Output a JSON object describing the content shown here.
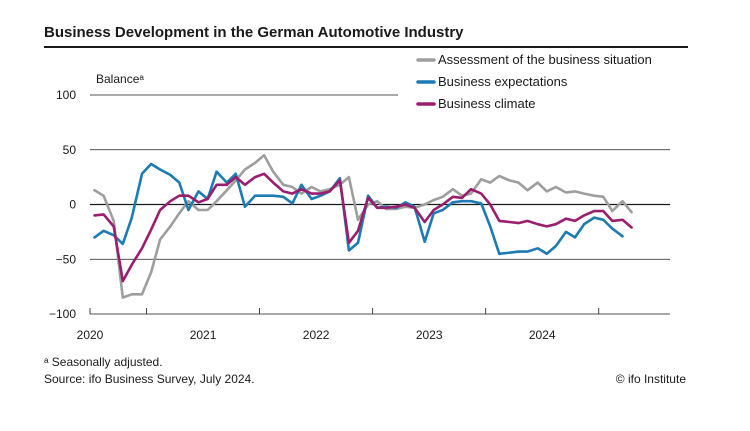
{
  "title": "Business Development in the German Automotive Industry",
  "footnote": "ᵃ Seasonally adjusted.",
  "source": "Source: ifo Business Survey, July 2024.",
  "credit": "© ifo Institute",
  "colors": {
    "situation": "#9e9e9e",
    "expectations": "#1c7bb3",
    "climate": "#9a1e6e",
    "grid": "#1a1a1a"
  },
  "chart_data": {
    "type": "line",
    "ylabel": "Balanceᵃ",
    "ylim": [
      -100,
      100
    ],
    "yticks": [
      100,
      50,
      0,
      -50,
      -100
    ],
    "ytick_labels": [
      "100",
      "50",
      "0",
      "−50",
      "−100"
    ],
    "xlim": [
      2019.5,
      2024.63
    ],
    "year_labels": [
      "2020",
      "2021",
      "2022",
      "2023",
      "2024"
    ],
    "legend_position": "top-right",
    "series": [
      {
        "name": "Assessment of the business situation",
        "color": "#9e9e9e",
        "x": [
          2019.54,
          2019.62,
          2019.71,
          2019.79,
          2019.87,
          2019.96,
          2020.04,
          2020.12,
          2020.21,
          2020.29,
          2020.37,
          2020.46,
          2020.54,
          2020.62,
          2020.71,
          2020.79,
          2020.87,
          2020.96,
          2021.04,
          2021.12,
          2021.21,
          2021.29,
          2021.37,
          2021.46,
          2021.54,
          2021.62,
          2021.71,
          2021.79,
          2021.87,
          2021.96,
          2022.04,
          2022.12,
          2022.21,
          2022.29,
          2022.37,
          2022.46,
          2022.54,
          2022.62,
          2022.71,
          2022.79,
          2022.87,
          2022.96,
          2023.04,
          2023.12,
          2023.21,
          2023.29,
          2023.37,
          2023.46,
          2023.54,
          2023.62,
          2023.71,
          2023.79,
          2023.87,
          2023.96,
          2024.04,
          2024.12,
          2024.21,
          2024.29,
          2024.37,
          2024.46,
          2024.54
        ],
        "y": [
          13,
          8,
          -15,
          -85,
          -82,
          -82,
          -62,
          -32,
          -20,
          -8,
          3,
          -5,
          -5,
          3,
          13,
          22,
          32,
          38,
          45,
          30,
          18,
          16,
          10,
          16,
          12,
          14,
          18,
          25,
          -14,
          0,
          3,
          -4,
          -4,
          -2,
          -3,
          0,
          4,
          7,
          14,
          8,
          10,
          23,
          20,
          26,
          22,
          20,
          13,
          20,
          12,
          16,
          11,
          12,
          10,
          8,
          7,
          -6,
          3,
          -7,
          null,
          null,
          null
        ]
      },
      {
        "name": "Business expectations",
        "color": "#1c7bb3",
        "x": [
          2019.54,
          2019.62,
          2019.71,
          2019.79,
          2019.87,
          2019.96,
          2020.04,
          2020.12,
          2020.21,
          2020.29,
          2020.37,
          2020.46,
          2020.54,
          2020.62,
          2020.71,
          2020.79,
          2020.87,
          2020.96,
          2021.04,
          2021.12,
          2021.21,
          2021.29,
          2021.37,
          2021.46,
          2021.54,
          2021.62,
          2021.71,
          2021.79,
          2021.87,
          2021.96,
          2022.04,
          2022.12,
          2022.21,
          2022.29,
          2022.37,
          2022.46,
          2022.54,
          2022.62,
          2022.71,
          2022.79,
          2022.87,
          2022.96,
          2023.04,
          2023.12,
          2023.21,
          2023.29,
          2023.37,
          2023.46,
          2023.54,
          2023.62,
          2023.71,
          2023.79,
          2023.87,
          2023.96,
          2024.04,
          2024.12,
          2024.21,
          2024.29,
          2024.37,
          2024.46,
          2024.54
        ],
        "y": [
          -30,
          -24,
          -28,
          -36,
          -12,
          28,
          37,
          32,
          27,
          20,
          -5,
          12,
          5,
          30,
          20,
          28,
          -2,
          8,
          8,
          8,
          7,
          1,
          18,
          5,
          8,
          12,
          24,
          -42,
          -35,
          8,
          -3,
          -2,
          -3,
          2,
          -2,
          -34,
          -8,
          -5,
          2,
          3,
          3,
          1,
          -20,
          -45,
          -44,
          -43,
          -43,
          -40,
          -45,
          -38,
          -25,
          -30,
          -18,
          -12,
          -14,
          -22,
          -29,
          null,
          null,
          null,
          null
        ]
      },
      {
        "name": "Business climate",
        "color": "#9a1e6e",
        "x": [
          2019.54,
          2019.62,
          2019.71,
          2019.79,
          2019.87,
          2019.96,
          2020.04,
          2020.12,
          2020.21,
          2020.29,
          2020.37,
          2020.46,
          2020.54,
          2020.62,
          2020.71,
          2020.79,
          2020.87,
          2020.96,
          2021.04,
          2021.12,
          2021.21,
          2021.29,
          2021.37,
          2021.46,
          2021.54,
          2021.62,
          2021.71,
          2021.79,
          2021.87,
          2021.96,
          2022.04,
          2022.12,
          2022.21,
          2022.29,
          2022.37,
          2022.46,
          2022.54,
          2022.62,
          2022.71,
          2022.79,
          2022.87,
          2022.96,
          2023.04,
          2023.12,
          2023.21,
          2023.29,
          2023.37,
          2023.46,
          2023.54,
          2023.62,
          2023.71,
          2023.79,
          2023.87,
          2023.96,
          2024.04,
          2024.12,
          2024.21,
          2024.29,
          2024.37,
          2024.46,
          2024.54
        ],
        "y": [
          -10,
          -9,
          -20,
          -70,
          -55,
          -40,
          -23,
          -5,
          3,
          8,
          8,
          2,
          5,
          18,
          18,
          25,
          18,
          25,
          28,
          20,
          12,
          10,
          14,
          10,
          10,
          12,
          22,
          -35,
          -24,
          6,
          -3,
          -3,
          -2,
          0,
          -3,
          -16,
          -5,
          0,
          7,
          6,
          14,
          10,
          0,
          -15,
          -16,
          -17,
          -15,
          -18,
          -20,
          -18,
          -13,
          -15,
          -10,
          -6,
          -6,
          -15,
          -14,
          -21,
          null,
          null,
          null
        ]
      }
    ]
  }
}
